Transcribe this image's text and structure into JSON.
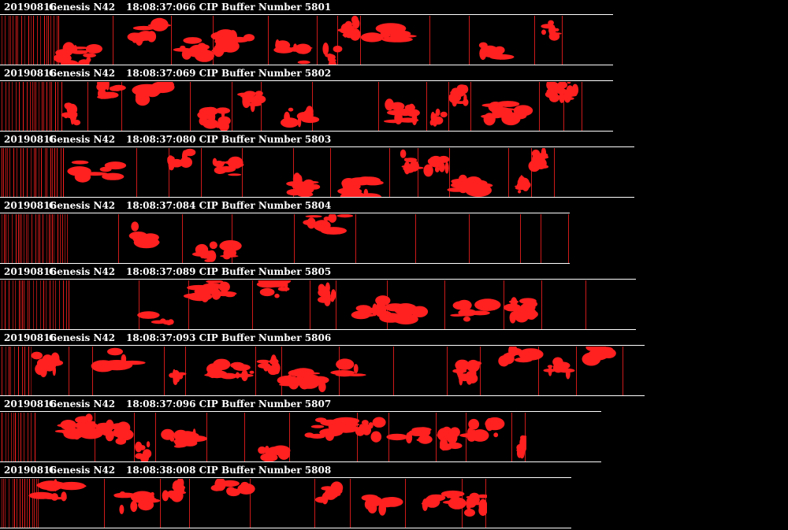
{
  "theme": {
    "background": "#000000",
    "text": "#ffffff",
    "particle": "#ff2020"
  },
  "buffers": [
    {
      "date": "20190816",
      "probe": "Genesis N42",
      "time": "18:08:37:066",
      "label": "CIP Buffer Number",
      "number": "5801"
    },
    {
      "date": "20190816",
      "probe": "Genesis N42",
      "time": "18:08:37:069",
      "label": "CIP Buffer Number",
      "number": "5802"
    },
    {
      "date": "20190816",
      "probe": "Genesis N42",
      "time": "18:08:37:080",
      "label": "CIP Buffer Number",
      "number": "5803"
    },
    {
      "date": "20190816",
      "probe": "Genesis N42",
      "time": "18:08:37:084",
      "label": "CIP Buffer Number",
      "number": "5804"
    },
    {
      "date": "20190816",
      "probe": "Genesis N42",
      "time": "18:08:37:089",
      "label": "CIP Buffer Number",
      "number": "5805"
    },
    {
      "date": "20190816",
      "probe": "Genesis N42",
      "time": "18:08:37:093",
      "label": "CIP Buffer Number",
      "number": "5806"
    },
    {
      "date": "20190816",
      "probe": "Genesis N42",
      "time": "18:08:37:096",
      "label": "CIP Buffer Number",
      "number": "5807"
    },
    {
      "date": "20190816",
      "probe": "Genesis N42",
      "time": "18:08:38:008",
      "label": "CIP Buffer Number",
      "number": "5808"
    }
  ]
}
